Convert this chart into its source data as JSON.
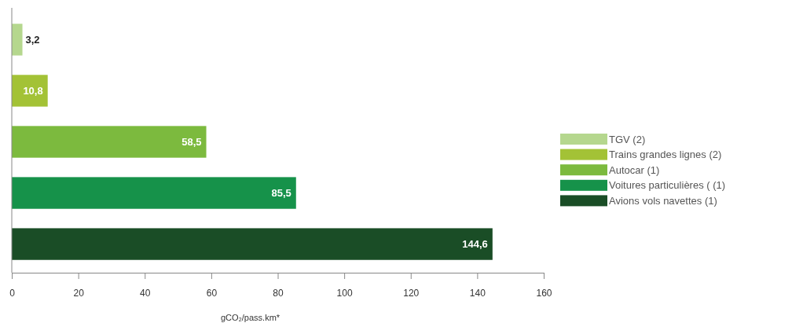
{
  "chart_data": {
    "type": "bar",
    "orientation": "horizontal",
    "xlabel": "gCO₂/pass.km*",
    "categories": [
      null,
      null,
      null,
      null,
      null
    ],
    "series": [
      {
        "name": "TGV (2)",
        "color": "#b5d78e",
        "values": [
          3.2,
          null,
          null,
          null,
          null
        ],
        "value_labels": [
          "3,2",
          null,
          null,
          null,
          null
        ]
      },
      {
        "name": "Trains grandes lignes (2)",
        "color": "#a3c236",
        "values": [
          null,
          10.8,
          null,
          null,
          null
        ],
        "value_labels": [
          null,
          "10,8",
          null,
          null,
          null
        ]
      },
      {
        "name": "Autocar (1)",
        "color": "#7cba3e",
        "values": [
          null,
          null,
          58.5,
          null,
          null
        ],
        "value_labels": [
          null,
          null,
          "58,5",
          null,
          null
        ]
      },
      {
        "name": "Voitures particulières ( (1)",
        "color": "#16924a",
        "values": [
          null,
          null,
          null,
          85.5,
          null
        ],
        "value_labels": [
          null,
          null,
          null,
          "85,5",
          null
        ]
      },
      {
        "name": "Avions vols navettes (1)",
        "color": "#1a4d26",
        "values": [
          null,
          null,
          null,
          null,
          144.6
        ],
        "value_labels": [
          null,
          null,
          null,
          null,
          "144,6"
        ]
      }
    ],
    "xlim": [
      0,
      160
    ],
    "xticks": [
      0,
      20,
      40,
      60,
      80,
      100,
      120,
      140,
      160
    ],
    "legend": "right"
  }
}
